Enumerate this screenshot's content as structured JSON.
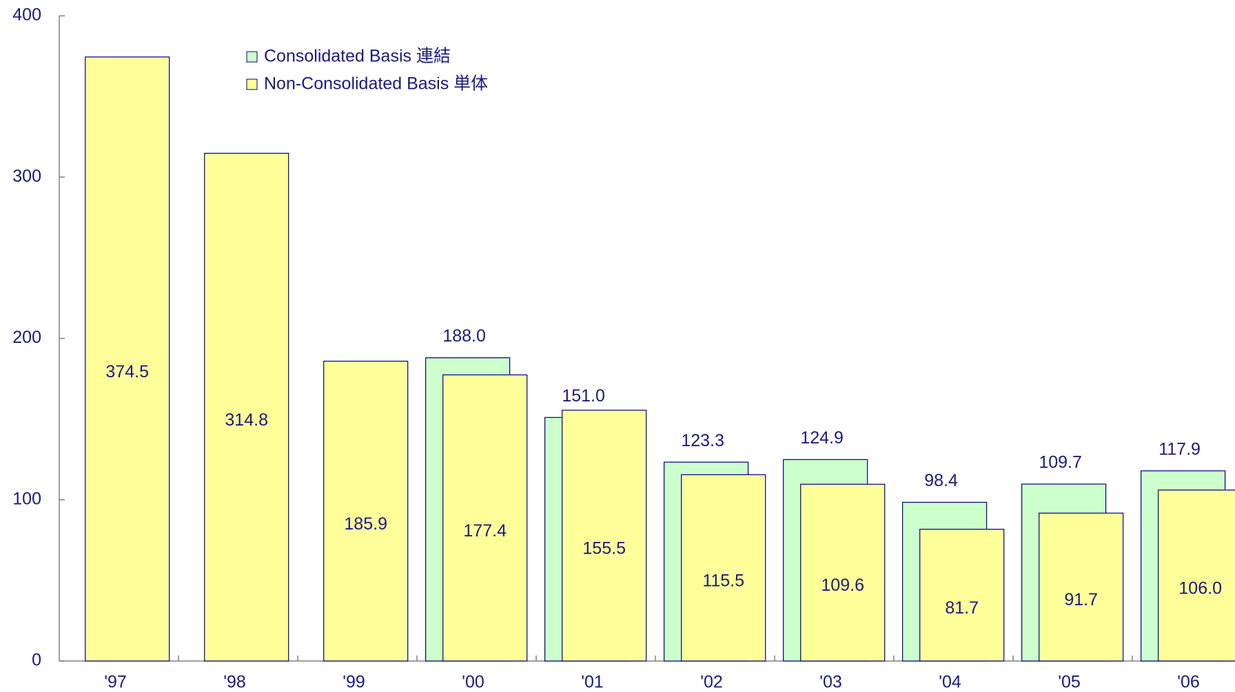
{
  "chart_data": {
    "type": "bar",
    "categories": [
      "'97",
      "'98",
      "'99",
      "'00",
      "'01",
      "'02",
      "'03",
      "'04",
      "'05",
      "'06"
    ],
    "series": [
      {
        "name": "Consolidated Basis 連結",
        "color": "#ccffcc",
        "values": [
          null,
          null,
          null,
          188.0,
          151.0,
          123.3,
          124.9,
          98.4,
          109.7,
          117.9
        ],
        "value_labels": [
          null,
          null,
          null,
          "188.0",
          "151.0",
          "123.3",
          "124.9",
          "98.4",
          "109.7",
          "117.9"
        ]
      },
      {
        "name": "Non-Consolidated Basis 単体",
        "color": "#ffff99",
        "values": [
          374.5,
          314.8,
          185.9,
          177.4,
          155.5,
          115.5,
          109.6,
          81.7,
          91.7,
          106.0
        ],
        "value_labels": [
          "374.5",
          "314.8",
          "185.9",
          "177.4",
          "155.5",
          "115.5",
          "109.6",
          "81.7",
          "91.7",
          "106.0"
        ]
      }
    ],
    "ylim": [
      0,
      400
    ],
    "yticks": [
      0,
      100,
      200,
      300,
      400
    ],
    "grid": false,
    "legend": "top-left"
  }
}
